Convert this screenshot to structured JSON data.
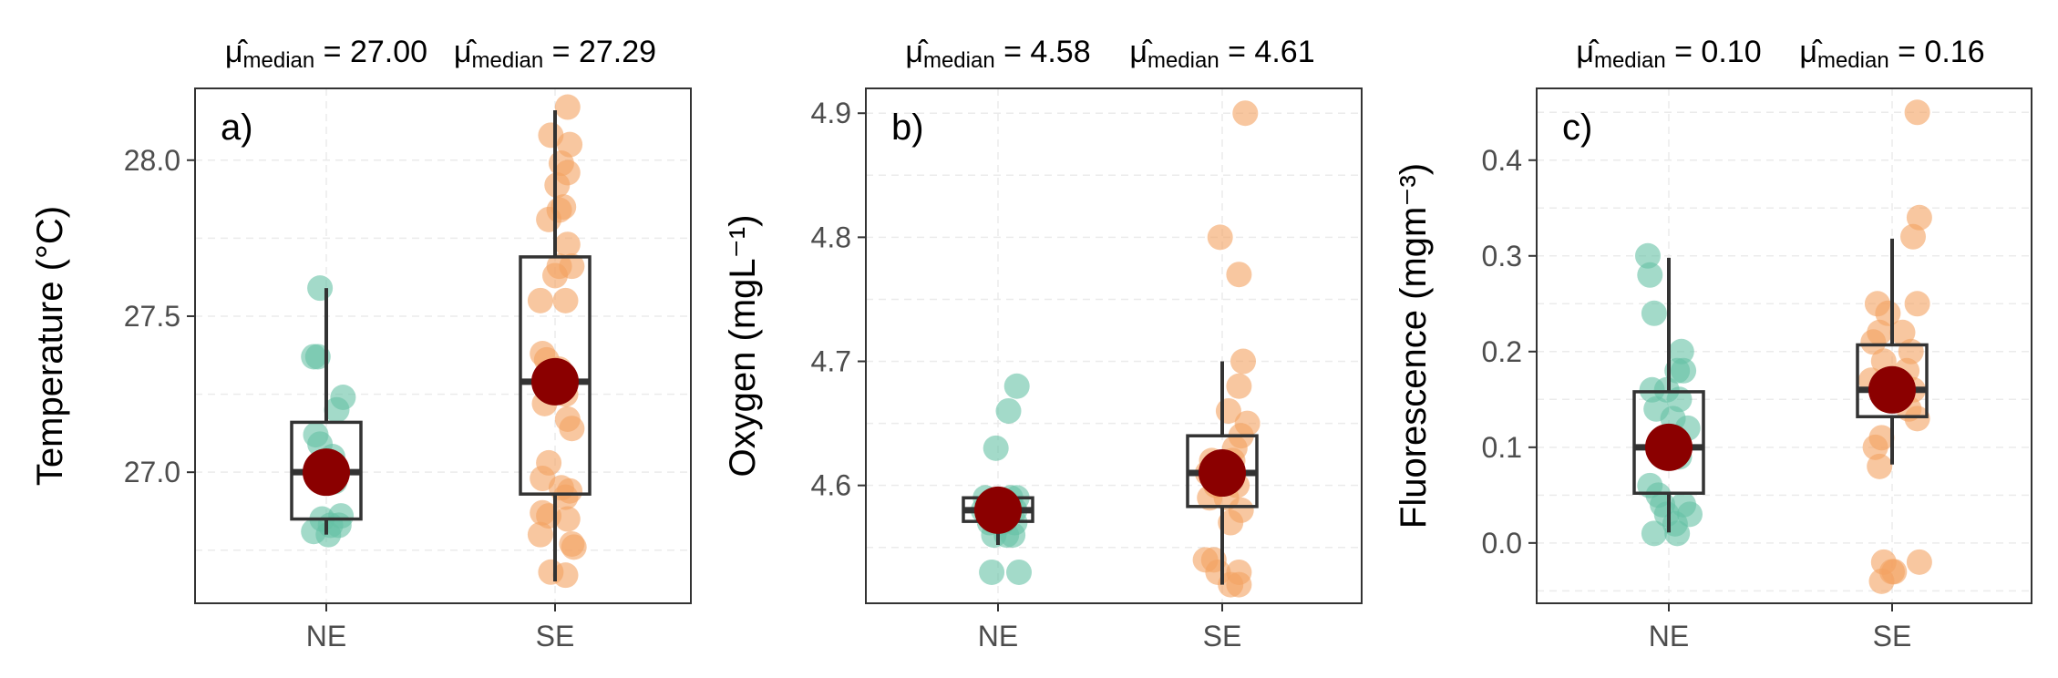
{
  "chart_data": [
    {
      "type": "scatter",
      "panel_tag": "a)",
      "ylabel": "Temperature (°C)",
      "categories": [
        "NE",
        "SE"
      ],
      "ylim": [
        26.58,
        28.23
      ],
      "y_ticks": [
        27.0,
        27.5,
        28.0
      ],
      "y_tick_labels": [
        "27.0",
        "27.5",
        "28.0"
      ],
      "grid": true,
      "stat_symbol": "μ̂",
      "stat_sub": "median",
      "stat_labels": [
        "= 27.00",
        "= 27.29"
      ],
      "series": [
        {
          "name": "NE",
          "color": "#66c2a5",
          "box": {
            "q1": 26.85,
            "median": 27.0,
            "q3": 27.16,
            "whisker_low": 26.8,
            "whisker_high": 27.59
          },
          "center": 27.0,
          "points": [
            {
              "x": -0.03,
              "y": 27.59
            },
            {
              "x": -0.06,
              "y": 27.37
            },
            {
              "x": -0.04,
              "y": 27.37
            },
            {
              "x": 0.08,
              "y": 27.24
            },
            {
              "x": 0.05,
              "y": 27.2
            },
            {
              "x": -0.05,
              "y": 27.12
            },
            {
              "x": -0.03,
              "y": 27.09
            },
            {
              "x": 0.03,
              "y": 27.05
            },
            {
              "x": -0.04,
              "y": 26.99
            },
            {
              "x": 0.04,
              "y": 26.97
            },
            {
              "x": 0.07,
              "y": 26.86
            },
            {
              "x": -0.02,
              "y": 26.85
            },
            {
              "x": 0.02,
              "y": 26.83
            },
            {
              "x": 0.06,
              "y": 26.83
            },
            {
              "x": -0.06,
              "y": 26.81
            },
            {
              "x": 0.01,
              "y": 26.8
            }
          ]
        },
        {
          "name": "SE",
          "color": "#f4a261",
          "box": {
            "q1": 26.93,
            "median": 27.29,
            "q3": 27.69,
            "whisker_low": 26.65,
            "whisker_high": 28.16
          },
          "center": 27.29,
          "points": [
            {
              "x": 0.06,
              "y": 28.17
            },
            {
              "x": -0.02,
              "y": 28.08
            },
            {
              "x": 0.07,
              "y": 28.05
            },
            {
              "x": 0.03,
              "y": 27.99
            },
            {
              "x": 0.06,
              "y": 27.96
            },
            {
              "x": 0.01,
              "y": 27.92
            },
            {
              "x": 0.04,
              "y": 27.85
            },
            {
              "x": 0.02,
              "y": 27.84
            },
            {
              "x": -0.03,
              "y": 27.81
            },
            {
              "x": 0.06,
              "y": 27.73
            },
            {
              "x": 0.08,
              "y": 27.66
            },
            {
              "x": 0.02,
              "y": 27.66
            },
            {
              "x": 0.0,
              "y": 27.63
            },
            {
              "x": -0.07,
              "y": 27.55
            },
            {
              "x": 0.05,
              "y": 27.55
            },
            {
              "x": -0.06,
              "y": 27.38
            },
            {
              "x": -0.04,
              "y": 27.36
            },
            {
              "x": 0.02,
              "y": 27.33
            },
            {
              "x": 0.05,
              "y": 27.25
            },
            {
              "x": -0.05,
              "y": 27.22
            },
            {
              "x": 0.06,
              "y": 27.17
            },
            {
              "x": 0.08,
              "y": 27.14
            },
            {
              "x": -0.03,
              "y": 27.03
            },
            {
              "x": -0.06,
              "y": 26.98
            },
            {
              "x": 0.03,
              "y": 26.95
            },
            {
              "x": 0.07,
              "y": 26.94
            },
            {
              "x": 0.05,
              "y": 26.92
            },
            {
              "x": -0.06,
              "y": 26.87
            },
            {
              "x": -0.03,
              "y": 26.86
            },
            {
              "x": 0.06,
              "y": 26.85
            },
            {
              "x": -0.07,
              "y": 26.8
            },
            {
              "x": 0.08,
              "y": 26.77
            },
            {
              "x": 0.09,
              "y": 26.76
            },
            {
              "x": -0.02,
              "y": 26.68
            },
            {
              "x": 0.05,
              "y": 26.67
            }
          ]
        }
      ]
    },
    {
      "type": "scatter",
      "panel_tag": "b)",
      "ylabel": "Oxygen (mgL⁻¹)",
      "categories": [
        "NE",
        "SE"
      ],
      "ylim": [
        4.505,
        4.92
      ],
      "y_ticks": [
        4.6,
        4.7,
        4.8,
        4.9
      ],
      "y_tick_labels": [
        "4.6",
        "4.7",
        "4.8",
        "4.9"
      ],
      "grid": true,
      "stat_symbol": "μ̂",
      "stat_sub": "median",
      "stat_labels": [
        "= 4.58",
        "= 4.61"
      ],
      "series": [
        {
          "name": "NE",
          "color": "#66c2a5",
          "box": {
            "q1": 4.571,
            "median": 4.58,
            "q3": 4.59,
            "whisker_low": 4.552,
            "whisker_high": 4.595
          },
          "center": 4.58,
          "points": [
            {
              "x": 0.09,
              "y": 4.68
            },
            {
              "x": 0.05,
              "y": 4.66
            },
            {
              "x": -0.01,
              "y": 4.63
            },
            {
              "x": 0.06,
              "y": 4.59
            },
            {
              "x": 0.09,
              "y": 4.59
            },
            {
              "x": -0.06,
              "y": 4.59
            },
            {
              "x": 0.08,
              "y": 4.58
            },
            {
              "x": -0.07,
              "y": 4.58
            },
            {
              "x": -0.04,
              "y": 4.57
            },
            {
              "x": 0.02,
              "y": 4.57
            },
            {
              "x": 0.08,
              "y": 4.57
            },
            {
              "x": -0.02,
              "y": 4.56
            },
            {
              "x": 0.04,
              "y": 4.56
            },
            {
              "x": 0.07,
              "y": 4.56
            },
            {
              "x": -0.03,
              "y": 4.53
            },
            {
              "x": 0.1,
              "y": 4.53
            }
          ]
        },
        {
          "name": "SE",
          "color": "#f4a261",
          "box": {
            "q1": 4.583,
            "median": 4.61,
            "q3": 4.64,
            "whisker_low": 4.52,
            "whisker_high": 4.7
          },
          "center": 4.61,
          "points": [
            {
              "x": 0.11,
              "y": 4.9
            },
            {
              "x": -0.01,
              "y": 4.8
            },
            {
              "x": 0.08,
              "y": 4.77
            },
            {
              "x": 0.1,
              "y": 4.7
            },
            {
              "x": 0.08,
              "y": 4.68
            },
            {
              "x": 0.12,
              "y": 4.65
            },
            {
              "x": 0.03,
              "y": 4.66
            },
            {
              "x": 0.09,
              "y": 4.64
            },
            {
              "x": 0.06,
              "y": 4.63
            },
            {
              "x": -0.05,
              "y": 4.62
            },
            {
              "x": -0.07,
              "y": 4.61
            },
            {
              "x": 0.05,
              "y": 4.62
            },
            {
              "x": -0.03,
              "y": 4.6
            },
            {
              "x": 0.07,
              "y": 4.6
            },
            {
              "x": -0.06,
              "y": 4.59
            },
            {
              "x": 0.02,
              "y": 4.59
            },
            {
              "x": 0.09,
              "y": 4.58
            },
            {
              "x": 0.04,
              "y": 4.57
            },
            {
              "x": -0.08,
              "y": 4.54
            },
            {
              "x": -0.04,
              "y": 4.54
            },
            {
              "x": 0.08,
              "y": 4.53
            },
            {
              "x": -0.02,
              "y": 4.53
            },
            {
              "x": 0.04,
              "y": 4.52
            },
            {
              "x": 0.08,
              "y": 4.52
            }
          ]
        }
      ]
    },
    {
      "type": "scatter",
      "panel_tag": "c)",
      "ylabel": "Fluorescence (mgm⁻³)",
      "categories": [
        "NE",
        "SE"
      ],
      "ylim": [
        -0.063,
        0.475
      ],
      "y_ticks": [
        0.0,
        0.1,
        0.2,
        0.3,
        0.4
      ],
      "y_tick_labels": [
        "0.0",
        "0.1",
        "0.2",
        "0.3",
        "0.4"
      ],
      "grid": true,
      "stat_symbol": "μ̂",
      "stat_sub": "median",
      "stat_labels": [
        "= 0.10",
        "= 0.16"
      ],
      "series": [
        {
          "name": "NE",
          "color": "#66c2a5",
          "box": {
            "q1": 0.052,
            "median": 0.1,
            "q3": 0.158,
            "whisker_low": 0.011,
            "whisker_high": 0.298
          },
          "center": 0.1,
          "points": [
            {
              "x": -0.1,
              "y": 0.3
            },
            {
              "x": -0.09,
              "y": 0.28
            },
            {
              "x": -0.07,
              "y": 0.24
            },
            {
              "x": 0.06,
              "y": 0.2
            },
            {
              "x": 0.04,
              "y": 0.18
            },
            {
              "x": 0.07,
              "y": 0.18
            },
            {
              "x": -0.08,
              "y": 0.16
            },
            {
              "x": -0.01,
              "y": 0.16
            },
            {
              "x": 0.05,
              "y": 0.15
            },
            {
              "x": -0.06,
              "y": 0.14
            },
            {
              "x": 0.02,
              "y": 0.13
            },
            {
              "x": 0.09,
              "y": 0.12
            },
            {
              "x": -0.02,
              "y": 0.1
            },
            {
              "x": 0.05,
              "y": 0.09
            },
            {
              "x": -0.09,
              "y": 0.06
            },
            {
              "x": -0.05,
              "y": 0.05
            },
            {
              "x": -0.03,
              "y": 0.04
            },
            {
              "x": 0.07,
              "y": 0.04
            },
            {
              "x": 0.1,
              "y": 0.03
            },
            {
              "x": -0.01,
              "y": 0.03
            },
            {
              "x": 0.03,
              "y": 0.02
            },
            {
              "x": -0.07,
              "y": 0.01
            },
            {
              "x": 0.04,
              "y": 0.01
            }
          ]
        },
        {
          "name": "SE",
          "color": "#f4a261",
          "box": {
            "q1": 0.132,
            "median": 0.16,
            "q3": 0.207,
            "whisker_low": 0.082,
            "whisker_high": 0.318
          },
          "center": 0.16,
          "points": [
            {
              "x": 0.12,
              "y": 0.45
            },
            {
              "x": 0.13,
              "y": 0.34
            },
            {
              "x": 0.1,
              "y": 0.32
            },
            {
              "x": -0.07,
              "y": 0.25
            },
            {
              "x": 0.12,
              "y": 0.25
            },
            {
              "x": -0.02,
              "y": 0.24
            },
            {
              "x": -0.06,
              "y": 0.22
            },
            {
              "x": 0.05,
              "y": 0.22
            },
            {
              "x": -0.09,
              "y": 0.21
            },
            {
              "x": 0.09,
              "y": 0.2
            },
            {
              "x": -0.04,
              "y": 0.19
            },
            {
              "x": 0.07,
              "y": 0.18
            },
            {
              "x": -0.1,
              "y": 0.17
            },
            {
              "x": 0.1,
              "y": 0.16
            },
            {
              "x": -0.03,
              "y": 0.15
            },
            {
              "x": 0.08,
              "y": 0.14
            },
            {
              "x": 0.12,
              "y": 0.13
            },
            {
              "x": -0.05,
              "y": 0.11
            },
            {
              "x": -0.08,
              "y": 0.1
            },
            {
              "x": -0.06,
              "y": 0.08
            },
            {
              "x": -0.04,
              "y": -0.02
            },
            {
              "x": 0.01,
              "y": -0.03
            },
            {
              "x": 0.13,
              "y": -0.02
            },
            {
              "x": 0.0,
              "y": -0.03
            },
            {
              "x": -0.05,
              "y": -0.04
            }
          ]
        }
      ]
    }
  ]
}
